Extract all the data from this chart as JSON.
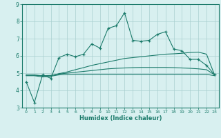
{
  "xlabel": "Humidex (Indice chaleur)",
  "bg_color": "#d8f0f0",
  "grid_color": "#aacfcf",
  "line_color": "#1a7a6a",
  "spine_color": "#1a7a6a",
  "xlim": [
    -0.5,
    23.5
  ],
  "ylim": [
    3,
    9
  ],
  "x_ticks": [
    0,
    1,
    2,
    3,
    4,
    5,
    6,
    7,
    8,
    9,
    10,
    11,
    12,
    13,
    14,
    15,
    16,
    17,
    18,
    19,
    20,
    21,
    22,
    23
  ],
  "y_ticks": [
    3,
    4,
    5,
    6,
    7,
    8,
    9
  ],
  "main_line": [
    4.5,
    3.3,
    4.9,
    4.7,
    5.9,
    6.1,
    5.95,
    6.1,
    6.7,
    6.45,
    7.6,
    7.75,
    8.5,
    6.9,
    6.85,
    6.9,
    7.25,
    7.4,
    6.4,
    6.3,
    5.8,
    5.8,
    5.45,
    4.9
  ],
  "flat_line1": [
    4.9,
    4.9,
    4.85,
    4.87,
    4.95,
    5.0,
    5.05,
    5.1,
    5.15,
    5.2,
    5.25,
    5.28,
    5.3,
    5.32,
    5.33,
    5.33,
    5.33,
    5.33,
    5.32,
    5.3,
    5.28,
    5.25,
    5.2,
    4.9
  ],
  "flat_line2": [
    4.88,
    4.88,
    4.83,
    4.85,
    4.97,
    5.07,
    5.2,
    5.32,
    5.45,
    5.55,
    5.65,
    5.75,
    5.85,
    5.9,
    5.95,
    6.0,
    6.05,
    6.1,
    6.12,
    6.15,
    6.2,
    6.22,
    6.1,
    4.88
  ],
  "flat_line3": [
    4.85,
    4.85,
    4.78,
    4.82,
    4.9,
    4.92,
    4.93,
    4.93,
    4.93,
    4.93,
    4.93,
    4.93,
    4.93,
    4.93,
    4.93,
    4.93,
    4.93,
    4.93,
    4.93,
    4.93,
    4.93,
    4.93,
    4.93,
    4.85
  ]
}
